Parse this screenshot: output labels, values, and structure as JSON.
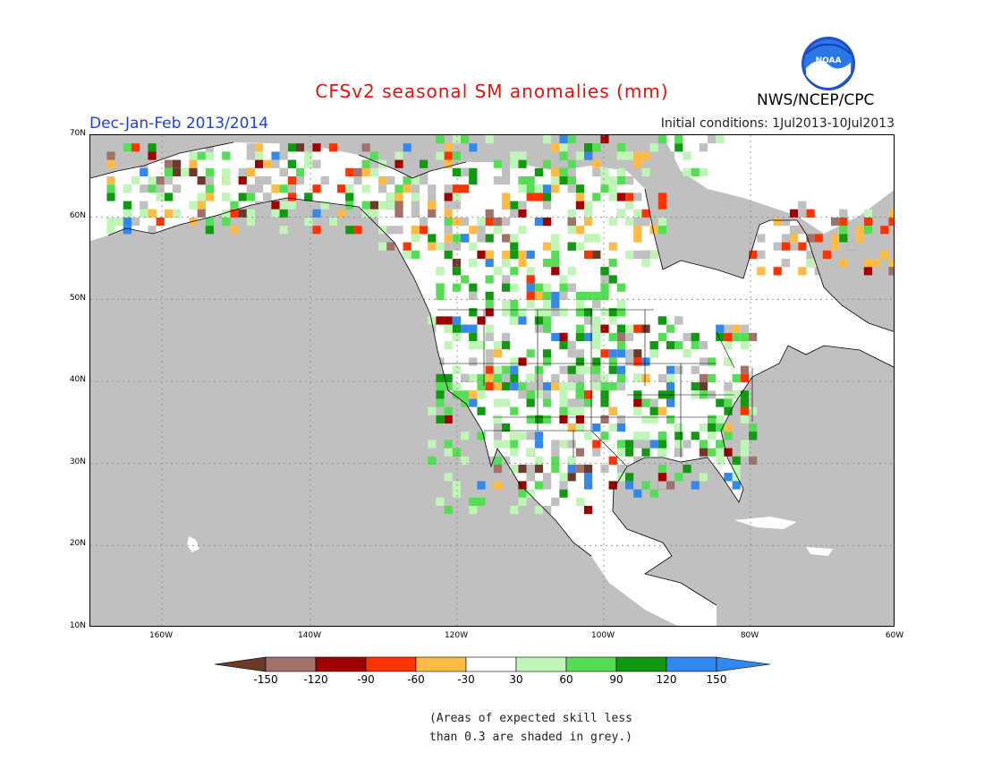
{
  "title": "CFSv2 seasonal SM anomalies (mm)",
  "agency": "NWS/NCEP/CPC",
  "logo_text": "NOAA",
  "season": "Dec-Jan-Feb 2013/2014",
  "initial_conditions": "Initial conditions: 1Jul2013-10Jul2013",
  "axes": {
    "lat_labels": [
      "70N",
      "60N",
      "50N",
      "40N",
      "30N",
      "20N",
      "10N"
    ],
    "lon_labels": [
      "160W",
      "140W",
      "120W",
      "100W",
      "80W",
      "60W"
    ]
  },
  "colors": {
    "ocean": "#c0c0c0",
    "land": "#ffffff",
    "low_skill_grey": "#c0c0c0"
  },
  "colorbar": {
    "labels": [
      "-150",
      "-120",
      "-90",
      "-60",
      "-30",
      "30",
      "60",
      "90",
      "120",
      "150"
    ],
    "colors": [
      "#6b3a2a",
      "#a0726a",
      "#a00000",
      "#ff3300",
      "#ffbb44",
      "#ffffff",
      "#bff5b7",
      "#55dd55",
      "#119911",
      "#3388ee",
      "#3388ee"
    ]
  },
  "note": {
    "line1": "(Areas of expected skill less",
    "line2": "than 0.3 are shaded in grey.)"
  }
}
